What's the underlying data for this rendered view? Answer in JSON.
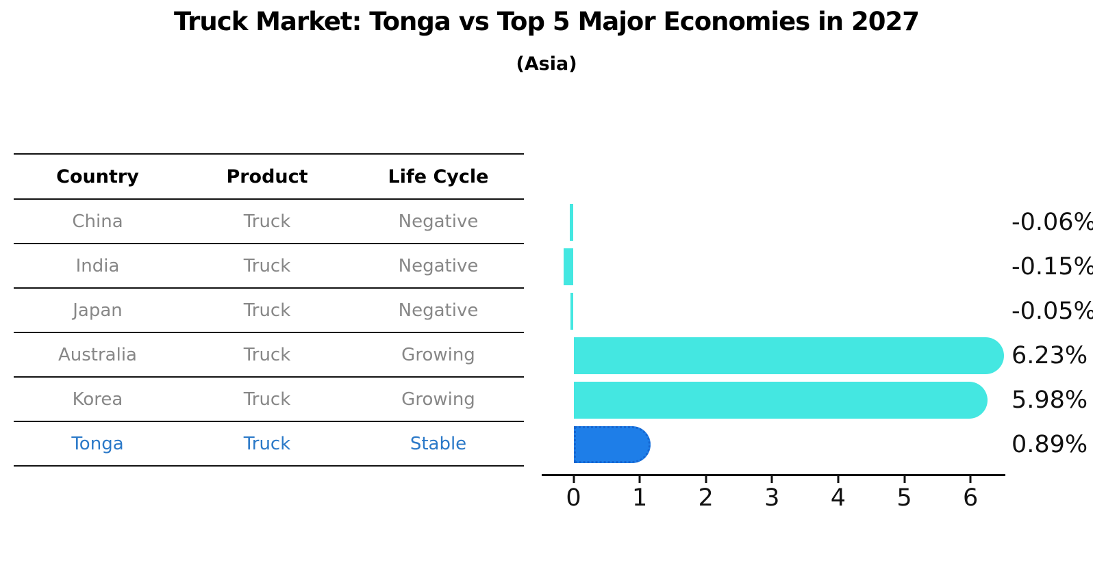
{
  "title": "Truck Market: Tonga vs Top 5 Major Economies in 2027",
  "subtitle": "(Asia)",
  "table": {
    "headers": {
      "country": "Country",
      "product": "Product",
      "life_cycle": "Life Cycle"
    },
    "rows": [
      {
        "country": "China",
        "product": "Truck",
        "life_cycle": "Negative",
        "highlight": false
      },
      {
        "country": "India",
        "product": "Truck",
        "life_cycle": "Negative",
        "highlight": false
      },
      {
        "country": "Japan",
        "product": "Truck",
        "life_cycle": "Negative",
        "highlight": false
      },
      {
        "country": "Australia",
        "product": "Truck",
        "life_cycle": "Growing",
        "highlight": false
      },
      {
        "country": "Korea",
        "product": "Truck",
        "life_cycle": "Growing",
        "highlight": false
      },
      {
        "country": "Tonga",
        "product": "Truck",
        "life_cycle": "Stable",
        "highlight": true
      }
    ]
  },
  "chart_data": {
    "type": "bar",
    "orientation": "horizontal",
    "title": "Truck Market: Tonga vs Top 5 Major Economies in 2027",
    "subtitle": "(Asia)",
    "categories": [
      "China",
      "India",
      "Japan",
      "Australia",
      "Korea",
      "Tonga"
    ],
    "values": [
      -0.06,
      -0.15,
      -0.05,
      6.23,
      5.98,
      0.89
    ],
    "value_labels": [
      "-0.06%",
      "-0.15%",
      "-0.05%",
      "6.23%",
      "5.98%",
      "0.89%"
    ],
    "x_ticks": [
      "0",
      "1",
      "2",
      "3",
      "4",
      "5",
      "6"
    ],
    "xlim": [
      -0.48,
      6.53
    ],
    "grid": false,
    "legend": null,
    "highlight_category": "Tonga",
    "unit_suffix": "%"
  },
  "colors": {
    "bar_default": "#44E7E1",
    "bar_highlight": "#1E7EE8",
    "bar_highlight_border": "#1565D0",
    "highlight_text": "#2B79C8",
    "row_text": "#878787",
    "header_text": "#000000",
    "axis": "#111111",
    "background": "#FFFFFF"
  }
}
